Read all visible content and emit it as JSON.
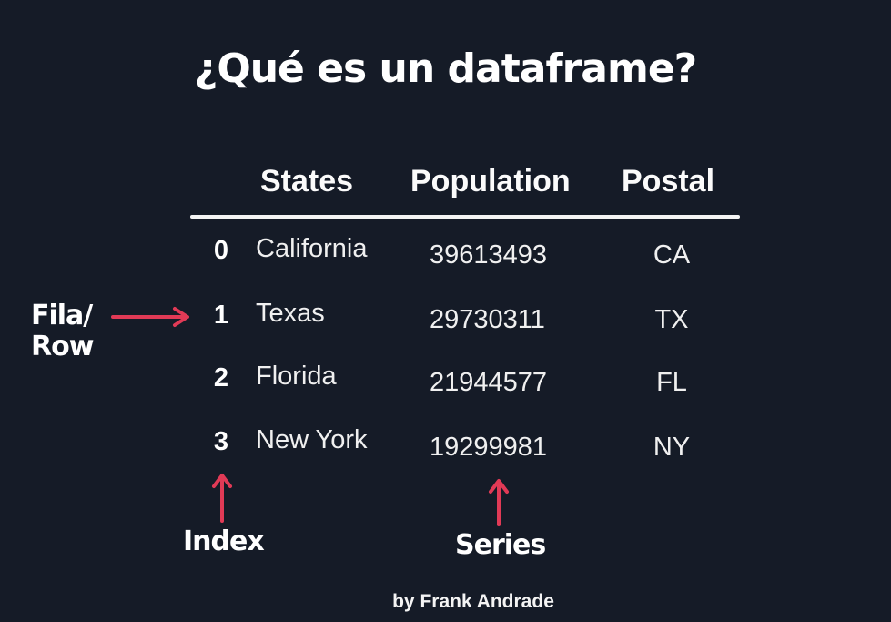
{
  "title": "¿Qué es un dataframe?",
  "table": {
    "headers": {
      "states": "States",
      "population": "Population",
      "postal": "Postal"
    },
    "rows": [
      {
        "index": "0",
        "state": "California",
        "population": "39613493",
        "postal": "CA"
      },
      {
        "index": "1",
        "state": "Texas",
        "population": "29730311",
        "postal": "TX"
      },
      {
        "index": "2",
        "state": "Florida",
        "population": "21944577",
        "postal": "FL"
      },
      {
        "index": "3",
        "state": "New York",
        "population": "19299981",
        "postal": "NY"
      }
    ]
  },
  "callouts": {
    "row_line1": "Fila/",
    "row_line2": "Row",
    "index": "Index",
    "series": "Series"
  },
  "credit": "by Frank Andrade",
  "colors": {
    "background": "#151b27",
    "text": "#ffffff",
    "arrow": "#e13a56"
  }
}
